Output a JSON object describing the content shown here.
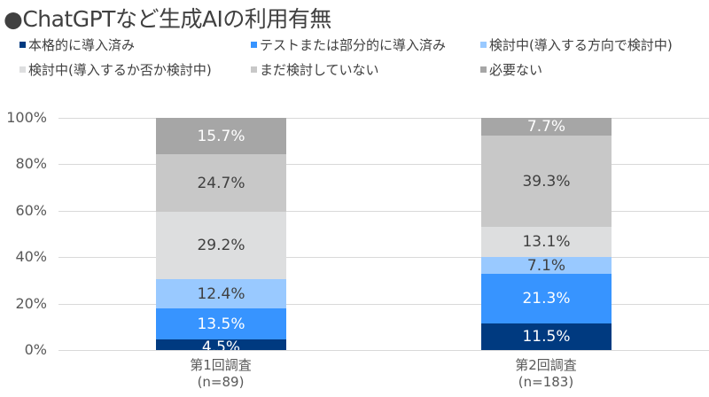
{
  "title": "●ChatGPTなど生成AIの利用有無",
  "legend": [
    {
      "label": "本格的に導入済み",
      "color": "#003A80"
    },
    {
      "label": "テストまたは部分的に導入済み",
      "color": "#3794FF"
    },
    {
      "label": "検討中(導入する方向で検討中)",
      "color": "#99C9FF"
    },
    {
      "label": "検討中(導入するか否か検討中)",
      "color": "#DDDEDF"
    },
    {
      "label": "まだ検討していない",
      "color": "#C8C8C8"
    },
    {
      "label": "必要ない",
      "color": "#A6A6A6"
    }
  ],
  "y_ticks": [
    "100%",
    "80%",
    "60%",
    "40%",
    "20%",
    "0%"
  ],
  "bars": [
    {
      "label_line1": "第1回調査",
      "label_line2": "(n=89)",
      "segments": [
        {
          "value": 4.5,
          "text": "4.5%"
        },
        {
          "value": 13.5,
          "text": "13.5%"
        },
        {
          "value": 12.4,
          "text": "12.4%"
        },
        {
          "value": 29.2,
          "text": "29.2%"
        },
        {
          "value": 24.7,
          "text": "24.7%"
        },
        {
          "value": 15.7,
          "text": "15.7%"
        }
      ]
    },
    {
      "label_line1": "第2回調査",
      "label_line2": "(n=183)",
      "segments": [
        {
          "value": 11.5,
          "text": "11.5%"
        },
        {
          "value": 21.3,
          "text": "21.3%"
        },
        {
          "value": 7.1,
          "text": "7.1%"
        },
        {
          "value": 13.1,
          "text": "13.1%"
        },
        {
          "value": 39.3,
          "text": "39.3%"
        },
        {
          "value": 7.7,
          "text": "7.7%"
        }
      ]
    }
  ],
  "chart_data": {
    "type": "bar",
    "stacked": true,
    "normalized": true,
    "title": "●ChatGPTなど生成AIの利用有無",
    "categories": [
      "第1回調査 (n=89)",
      "第2回調査 (n=183)"
    ],
    "series": [
      {
        "name": "本格的に導入済み",
        "values": [
          4.5,
          11.5
        ],
        "color": "#003A80"
      },
      {
        "name": "テストまたは部分的に導入済み",
        "values": [
          13.5,
          21.3
        ],
        "color": "#3794FF"
      },
      {
        "name": "検討中(導入する方向で検討中)",
        "values": [
          12.4,
          7.1
        ],
        "color": "#99C9FF"
      },
      {
        "name": "検討中(導入するか否か検討中)",
        "values": [
          29.2,
          13.1
        ],
        "color": "#DDDEDF"
      },
      {
        "name": "まだ検討していない",
        "values": [
          24.7,
          39.3
        ],
        "color": "#C8C8C8"
      },
      {
        "name": "必要ない",
        "values": [
          15.7,
          7.7
        ],
        "color": "#A6A6A6"
      }
    ],
    "xlabel": "",
    "ylabel": "",
    "ylim": [
      0,
      100
    ],
    "y_tick_labels": [
      "0%",
      "20%",
      "40%",
      "60%",
      "80%",
      "100%"
    ],
    "grid": true,
    "legend_position": "top",
    "data_labels": true
  }
}
